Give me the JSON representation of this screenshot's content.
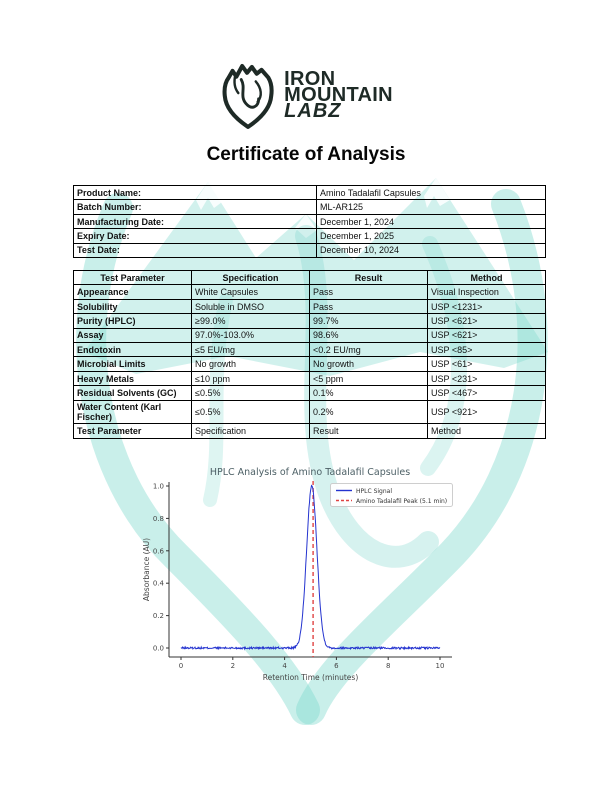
{
  "page": {
    "title": "Certificate of Analysis"
  },
  "logo": {
    "line1": "IRON",
    "line2": "MOUNTAIN",
    "line3": "LABZ"
  },
  "product_info": {
    "rows": [
      {
        "label": "Product Name:",
        "value": "Amino Tadalafil Capsules"
      },
      {
        "label": "Batch Number:",
        "value": "ML-AR125"
      },
      {
        "label": "Manufacturing Date:",
        "value": "December 1, 2024"
      },
      {
        "label": "Expiry Date:",
        "value": "December 1, 2025"
      },
      {
        "label": "Test Date:",
        "value": "December 10, 2024"
      }
    ]
  },
  "results_table": {
    "headers": [
      "Test Parameter",
      "Specification",
      "Result",
      "Method"
    ],
    "rows": [
      [
        "Appearance",
        "White Capsules",
        "Pass",
        "Visual Inspection"
      ],
      [
        "Solubility",
        "Soluble in DMSO",
        "Pass",
        "USP <1231>"
      ],
      [
        "Purity (HPLC)",
        "≥99.0%",
        "99.7%",
        "USP <621>"
      ],
      [
        "Assay",
        "97.0%-103.0%",
        "98.6%",
        "USP <621>"
      ],
      [
        "Endotoxin",
        "≤5 EU/mg",
        "<0.2 EU/mg",
        "USP <85>"
      ],
      [
        "Microbial Limits",
        "No growth",
        "No growth",
        "USP <61>"
      ],
      [
        "Heavy Metals",
        "≤10 ppm",
        "<5 ppm",
        "USP <231>"
      ],
      [
        "Residual Solvents (GC)",
        "≤0.5%",
        "0.1%",
        "USP <467>"
      ],
      [
        "Water Content (Karl Fischer)",
        "≤0.5%",
        "0.2%",
        "USP <921>"
      ],
      [
        "Test Parameter",
        "Specification",
        "Result",
        "Method"
      ]
    ]
  },
  "chart_data": {
    "type": "line",
    "title": "HPLC Analysis of Amino Tadalafil Capsules",
    "xlabel": "Retention Time (minutes)",
    "ylabel": "Absorbance (AU)",
    "xlim": [
      0,
      10
    ],
    "ylim": [
      0.0,
      1.0
    ],
    "xticks": [
      "0",
      "2",
      "4",
      "6",
      "8",
      "10"
    ],
    "yticks": [
      "0.0",
      "0.2",
      "0.4",
      "0.6",
      "0.8",
      "1.0"
    ],
    "grid": false,
    "legend_position": "upper right",
    "series": [
      {
        "name": "HPLC Signal",
        "shape": "gaussian-peak-with-noisy-baseline",
        "peak_center": 5.05,
        "peak_height": 1.0,
        "peak_sigma": 0.2,
        "baseline": 0.0,
        "noise_amplitude": 0.006
      }
    ],
    "marker": {
      "name": "Amino Tadalafil Peak (5.1 min)",
      "x": 5.1,
      "style": "dashed"
    }
  },
  "colors": {
    "logo_dark": "#1e2a26",
    "watermark_teal": "#7fd8cc",
    "signal_blue": "#2433cf",
    "peak_red": "#e04343",
    "chart_text": "#4d6066",
    "axis_gray": "#444444"
  }
}
